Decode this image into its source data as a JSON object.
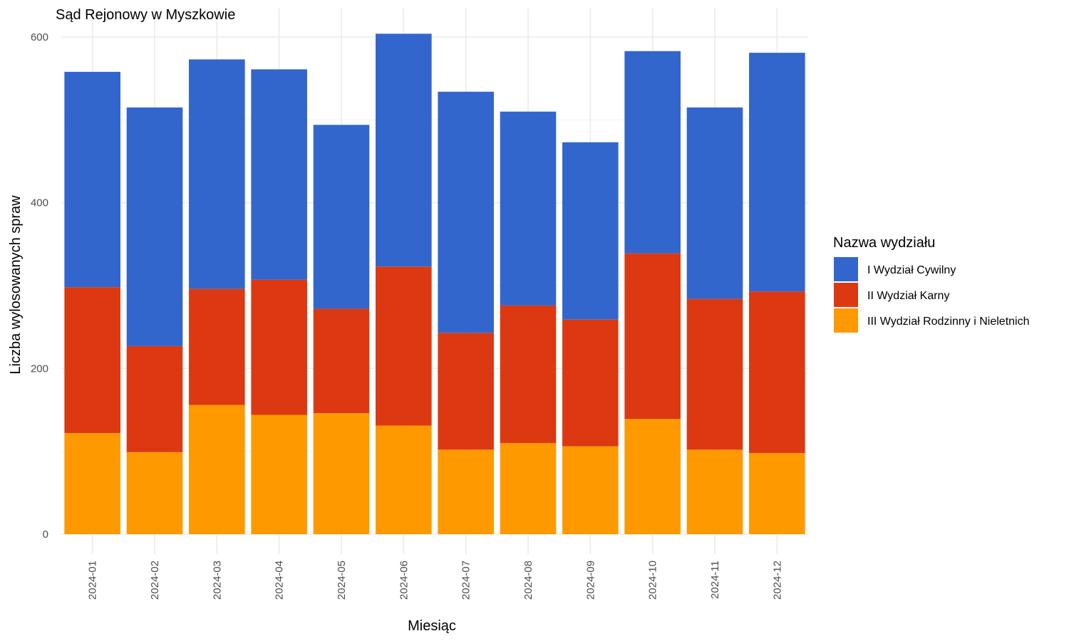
{
  "chart_data": {
    "type": "bar",
    "stacked": true,
    "title": "Sąd Rejonowy w Myszkowie",
    "xlabel": "Miesiąc",
    "ylabel": "Liczba wylosowanych spraw",
    "ylim": [
      0,
      620
    ],
    "y_ticks": [
      0,
      200,
      400,
      600
    ],
    "grid": true,
    "legend_title": "Nazwa wydziału",
    "legend_position": "right",
    "categories": [
      "2024-01",
      "2024-02",
      "2024-03",
      "2024-04",
      "2024-05",
      "2024-06",
      "2024-07",
      "2024-08",
      "2024-09",
      "2024-10",
      "2024-11",
      "2024-12"
    ],
    "series": [
      {
        "name": "III Wydział Rodzinny i Nieletnich",
        "color": "#FF9900",
        "values": [
          122,
          99,
          156,
          144,
          146,
          131,
          102,
          110,
          106,
          139,
          102,
          98
        ]
      },
      {
        "name": "II Wydział Karny",
        "color": "#DC3912",
        "values": [
          176,
          128,
          140,
          163,
          126,
          192,
          141,
          166,
          153,
          200,
          182,
          195
        ]
      },
      {
        "name": "I Wydział Cywilny",
        "color": "#3366CC",
        "values": [
          260,
          288,
          277,
          254,
          222,
          281,
          291,
          234,
          214,
          244,
          231,
          288
        ]
      }
    ],
    "legend_order": [
      "I Wydział Cywilny",
      "II Wydział Karny",
      "III Wydział Rodzinny i Nieletnich"
    ]
  }
}
